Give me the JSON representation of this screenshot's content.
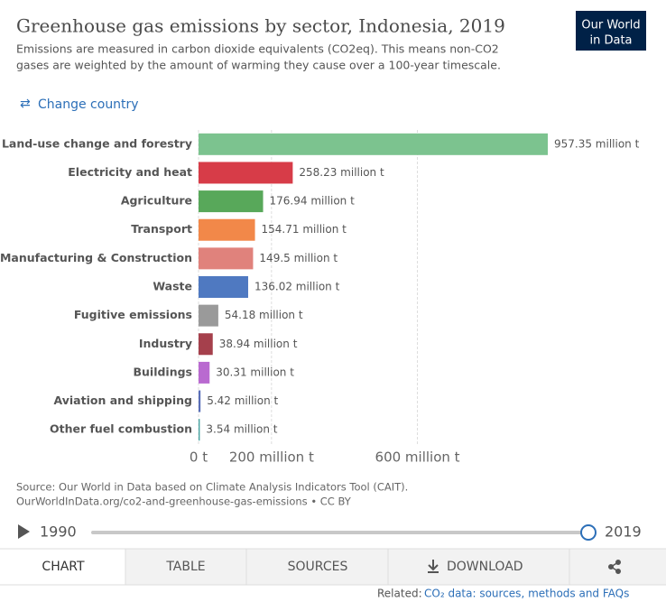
{
  "header": {
    "title": "Greenhouse gas emissions by sector, Indonesia, 2019",
    "subtitle": [
      "Emissions are measured in carbon dioxide equivalents (CO2eq). This means non-CO2",
      "gases are weighted by the amount of warming they cause over a 100-year timescale."
    ],
    "logo": [
      "Our World",
      "in Data"
    ]
  },
  "change_country": "Change country",
  "chart_data": {
    "type": "bar",
    "orientation": "horizontal",
    "categories": [
      "Land-use change and forestry",
      "Electricity and heat",
      "Agriculture",
      "Transport",
      "Manufacturing & Construction",
      "Waste",
      "Fugitive emissions",
      "Industry",
      "Buildings",
      "Aviation and shipping",
      "Other fuel combustion"
    ],
    "values": [
      957.35,
      258.23,
      176.94,
      154.71,
      149.5,
      136.02,
      54.18,
      38.94,
      30.31,
      5.42,
      3.54
    ],
    "value_labels": [
      "957.35 million t",
      "258.23 million t",
      "176.94 million t",
      "154.71 million t",
      "149.5 million t",
      "136.02 million t",
      "54.18 million t",
      "38.94 million t",
      "30.31 million t",
      "5.42 million t",
      "3.54 million t"
    ],
    "colors": [
      "#7cc38f",
      "#d73c48",
      "#58a85a",
      "#f28849",
      "#e0827c",
      "#4f79c1",
      "#9a9a9a",
      "#a5404c",
      "#b96ad0",
      "#5a6fb8",
      "#4aa6a3"
    ],
    "xlim": [
      0,
      957.35
    ],
    "xticks": [
      {
        "value": 0,
        "label": "0 t"
      },
      {
        "value": 200,
        "label": "200 million t"
      },
      {
        "value": 600,
        "label": "600 million t"
      }
    ],
    "grid": true
  },
  "source": [
    "Source: Our World in Data based on Climate Analysis Indicators Tool (CAIT).",
    "OurWorldInData.org/co2-and-greenhouse-gas-emissions • CC BY"
  ],
  "timeline": {
    "start": 1990,
    "end": 2019
  },
  "tabs": [
    "CHART",
    "TABLE",
    "SOURCES",
    "DOWNLOAD"
  ],
  "related": {
    "prefix": "Related:",
    "link": "CO₂ data: sources, methods and FAQs"
  }
}
